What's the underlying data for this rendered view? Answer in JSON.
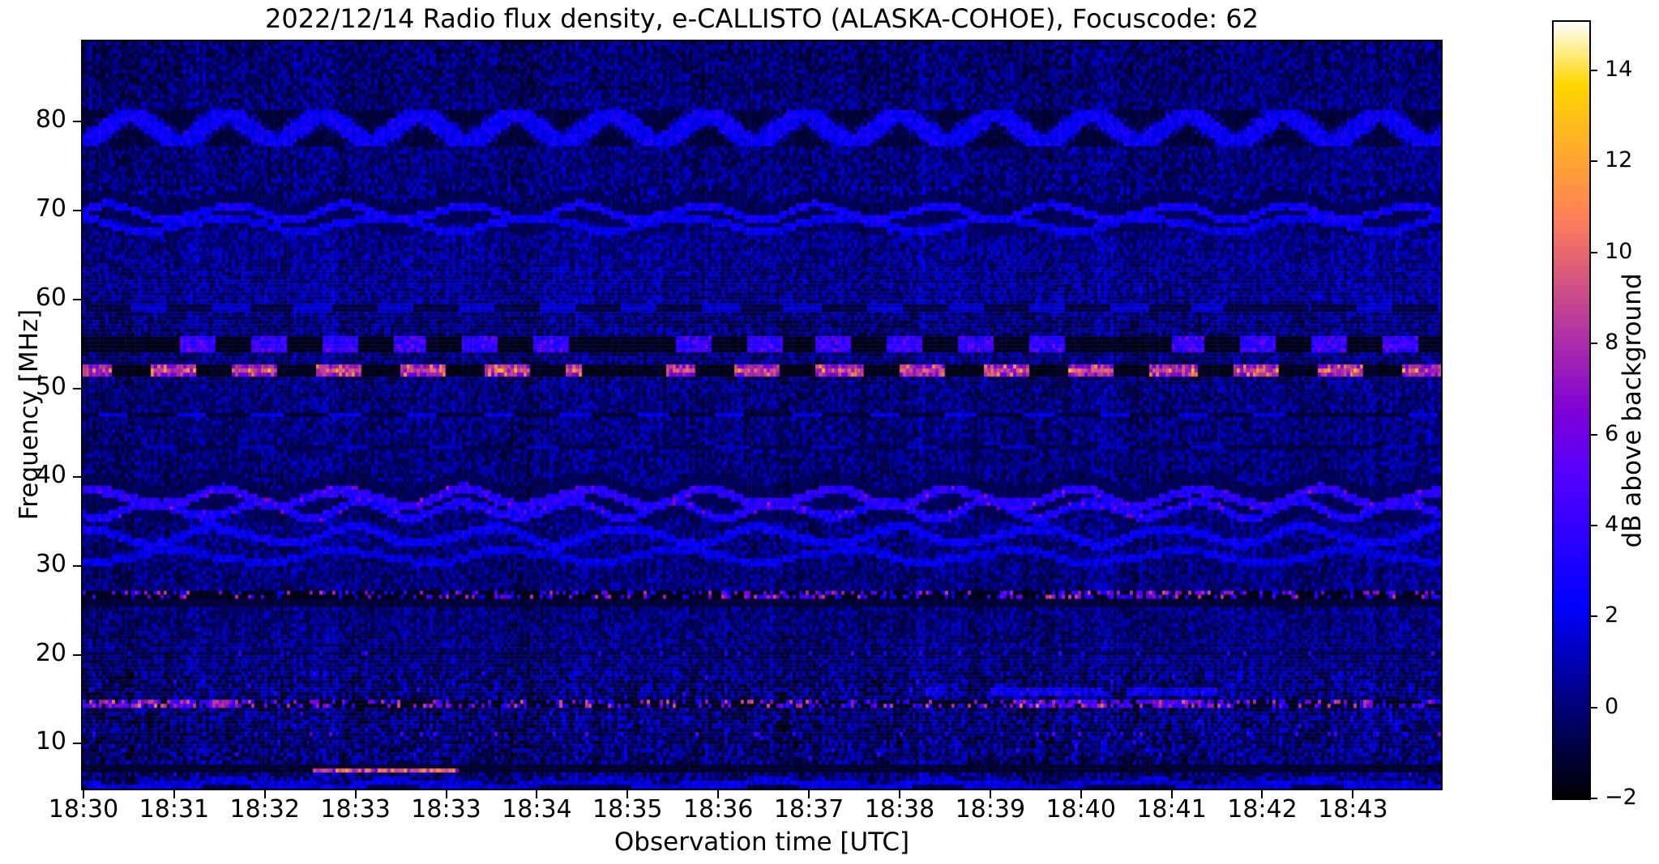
{
  "figure": {
    "background_color": "#ffffff",
    "accent_color": "#0000cc"
  },
  "chart_data": {
    "type": "heatmap",
    "subtype": "radio-spectrogram",
    "title": "2022/12/14  Radio flux density, e-CALLISTO (ALASKA-COHOE), Focuscode: 62",
    "xlabel": "Observation time [UTC]",
    "ylabel": "Frequency [MHz]",
    "x_ticks": [
      "18:30",
      "18:31",
      "18:32",
      "18:33",
      "18:33",
      "18:34",
      "18:35",
      "18:36",
      "18:37",
      "18:38",
      "18:39",
      "18:40",
      "18:41",
      "18:42",
      "18:43"
    ],
    "y_ticks": [
      80,
      70,
      60,
      50,
      40,
      30,
      20,
      10
    ],
    "x_range_minutes": [
      0,
      14.98
    ],
    "y_range_mhz": [
      4.94,
      89.06
    ],
    "grid": false,
    "colorbar": {
      "label": "dB above background",
      "ticks": [
        14,
        12,
        10,
        8,
        6,
        4,
        2,
        0,
        -2
      ],
      "vmin": -2,
      "vmax": 15.07,
      "colormap": "gnuplot2"
    },
    "noise": {
      "base": -0.9,
      "spread": 2.4,
      "speckle_power": 1.4,
      "column_striping": 0.6,
      "bright_zone_mhz": [
        59.5,
        67.5
      ],
      "hf_contrast_below_mhz": 18,
      "dim_above_mhz": 83
    },
    "features": [
      {
        "type": "herringbone",
        "f0": 77.2,
        "f1": 81.3,
        "segment_min": 0.53,
        "on_db": 2.6,
        "off_db": -1.4,
        "desc": "zig-zag dashed interference band 78-81 MHz"
      },
      {
        "type": "dotted_strip",
        "f0": 71.6,
        "f1": 72.8,
        "density": 0.45,
        "v_min": 0.5,
        "v_max": 2.2,
        "dark": -1.0,
        "hotspots": [],
        "desc": "speckled band ~72 MHz"
      },
      {
        "type": "wavy_line",
        "f": 69.8,
        "amp": 0.8,
        "period": 1.3,
        "phase": 0.0,
        "width": 0.45,
        "v": 2.6,
        "sparkle": 0,
        "dark_lane": 1.3,
        "desc": "wavy trace ~70 MHz"
      },
      {
        "type": "wavy_line",
        "f": 68.4,
        "amp": 0.7,
        "period": 1.7,
        "phase": 2.1,
        "width": 0.45,
        "v": 2.2,
        "sparkle": 0,
        "desc": "wavy trace ~68 MHz"
      },
      {
        "type": "dashed_band",
        "f": 59.0,
        "hw": 0.45,
        "period": 0.9,
        "duty": 0.45,
        "phase": 0.4,
        "on_db": 1.5,
        "off_db": -1.2,
        "sparkle": 0
      },
      {
        "type": "dashed_band",
        "f": 55.0,
        "hw": 0.75,
        "period": 0.78,
        "duty": 0.5,
        "phase": 0.62,
        "on_db": 3.8,
        "off_db": -1.8,
        "sparkle": 6.5
      },
      {
        "type": "dashed_band",
        "f": 52.1,
        "hw": 0.75,
        "period": 0.92,
        "duty": 0.55,
        "phase": 0.2,
        "on_db": 7.2,
        "off_db": -1.9,
        "sparkle": 11.5,
        "core": 1.6,
        "desc": "brightest RFI band ~52 MHz, pink/orange dashes"
      },
      {
        "type": "dashed_band",
        "f": 47.0,
        "hw": 0.45,
        "period": 0.85,
        "duty": 0.4,
        "phase": 0.8,
        "on_db": 1.9,
        "off_db": -1.4,
        "sparkle": 0
      },
      {
        "type": "dashed_band",
        "f": 43.4,
        "hw": 0.4,
        "period": 1.05,
        "duty": 0.35,
        "phase": 0.35,
        "on_db": 1.2,
        "off_db": -1.1,
        "sparkle": 0
      },
      {
        "type": "wavy_line",
        "f": 37.7,
        "amp": 0.9,
        "period": 1.35,
        "phase": 0.8,
        "width": 0.55,
        "v": 3.6,
        "sparkle": 6.8,
        "dark_lane": 1.5,
        "desc": "strong wavy band ~37-38 MHz with magenta spots"
      },
      {
        "type": "wavy_line",
        "f": 36.3,
        "amp": 0.85,
        "period": 1.15,
        "phase": 3.6,
        "width": 0.5,
        "v": 3.1,
        "sparkle": 6.2
      },
      {
        "type": "wavy_line",
        "f": 33.4,
        "amp": 0.9,
        "period": 1.5,
        "phase": 1.6,
        "width": 0.5,
        "v": 2.3,
        "sparkle": 0
      },
      {
        "type": "wavy_line",
        "f": 31.1,
        "amp": 0.7,
        "period": 1.85,
        "phase": 4.4,
        "width": 0.45,
        "v": 1.9,
        "sparkle": 0
      },
      {
        "type": "dotted_strip",
        "f0": 26.3,
        "f1": 27.4,
        "density": 0.3,
        "v_min": 2,
        "v_max": 8.5,
        "dark": -1.9,
        "hotspots": [
          [
            10.6,
            12.7
          ],
          [
            7.4,
            8.3
          ]
        ],
        "desc": "RFI channel ~27 MHz, bright dots over black lane"
      },
      {
        "type": "dark_lane",
        "f0": 25.4,
        "f1": 26.2,
        "v": -1.3
      },
      {
        "type": "dotted_strip",
        "f0": 20.0,
        "f1": 20.6,
        "density": 0.1,
        "v_min": 1.5,
        "v_max": 4.5,
        "dark": -0.9,
        "hotspots": []
      },
      {
        "type": "dotted_strip",
        "f0": 14.2,
        "f1": 15.1,
        "density": 0.4,
        "v_min": 2.5,
        "v_max": 9.5,
        "dark": -1.8,
        "hotspots": [
          [
            0,
            1.9
          ],
          [
            10.3,
            12.6
          ]
        ],
        "desc": "strong RFI ~15 MHz"
      },
      {
        "type": "patch",
        "f0": 15.2,
        "f1": 16.5,
        "t0": 9.3,
        "t1": 12.7,
        "v": 3.2,
        "desc": "patchy blue enhancement 15-16.5 MHz, 18:39-18:42"
      },
      {
        "type": "dotted_strip",
        "f0": 10.8,
        "f1": 11.4,
        "density": 0.16,
        "v_min": 2,
        "v_max": 6,
        "dark": -0.6,
        "hotspots": []
      },
      {
        "type": "dark_lane",
        "f0": 6.9,
        "f1": 7.45,
        "v": -1.5
      },
      {
        "type": "burst",
        "f0": 6.6,
        "f1": 7.35,
        "t0": 2.55,
        "t1": 4.15,
        "v_min": 6,
        "v_max": 11.5,
        "desc": "bright pink/orange burst ~7 MHz around 18:33"
      },
      {
        "type": "dark_lane",
        "f0": 4.94,
        "f1": 5.6,
        "v": -0.9
      },
      {
        "type": "wavy_line",
        "f": 5.45,
        "amp": 0.3,
        "period": 2.0,
        "phase": 2.9,
        "width": 0.4,
        "v": 1.8,
        "sparkle": 0
      }
    ]
  }
}
